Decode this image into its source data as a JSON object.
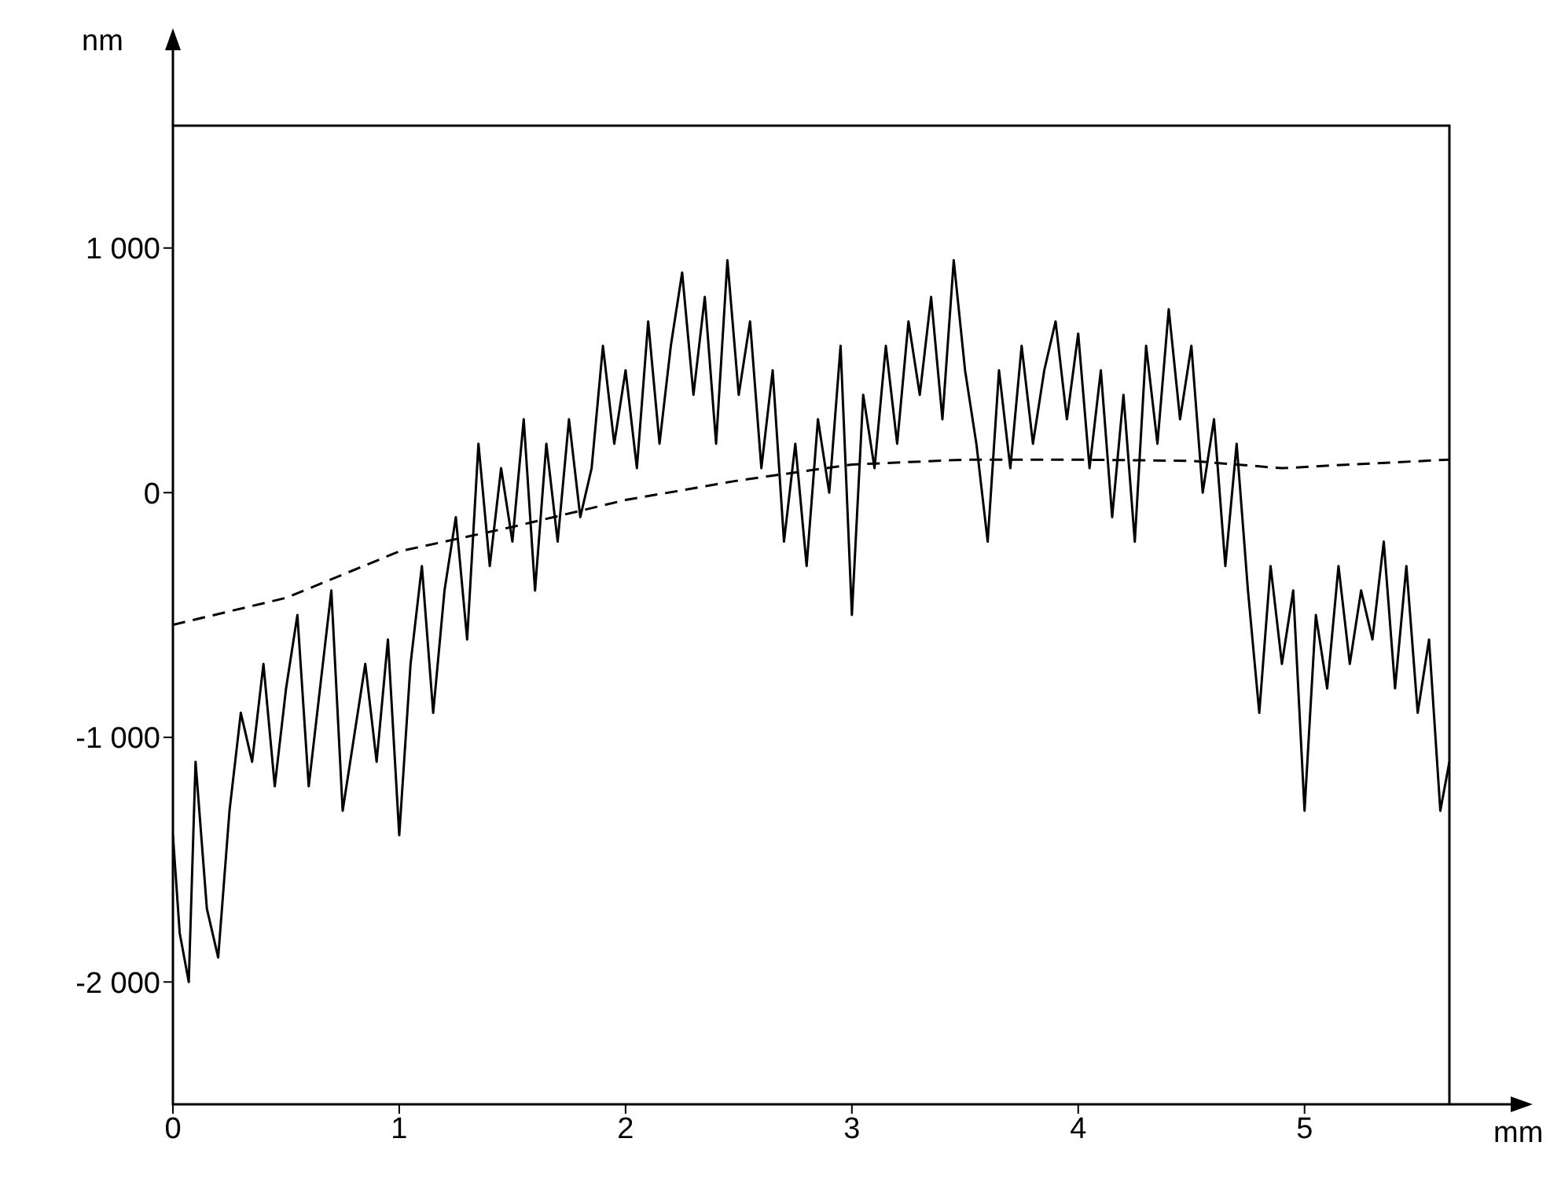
{
  "chart_data": {
    "type": "line",
    "xlabel": "mm",
    "ylabel": "nm",
    "xlim": [
      0,
      5.64
    ],
    "xticks": [
      0,
      1,
      2,
      3,
      4,
      5
    ],
    "ylim": [
      -2500,
      1500
    ],
    "yticks": [
      {
        "value": -2000,
        "label": "-2 000"
      },
      {
        "value": -1000,
        "label": "-1 000"
      },
      0,
      {
        "value": 1000,
        "label": "1 000"
      }
    ],
    "marker": "none",
    "series": [
      {
        "color": "#000000",
        "line_style": "solid",
        "x": [
          0,
          0.03,
          0.07,
          0.1,
          0.15,
          0.2,
          0.25,
          0.3,
          0.35,
          0.4,
          0.45,
          0.5,
          0.55,
          0.6,
          0.65,
          0.7,
          0.75,
          0.8,
          0.85,
          0.9,
          0.95,
          1.0,
          1.05,
          1.1,
          1.15,
          1.2,
          1.25,
          1.3,
          1.35,
          1.4,
          1.45,
          1.5,
          1.55,
          1.6,
          1.65,
          1.7,
          1.75,
          1.8,
          1.85,
          1.9,
          1.95,
          2.0,
          2.05,
          2.1,
          2.15,
          2.2,
          2.25,
          2.3,
          2.35,
          2.4,
          2.45,
          2.5,
          2.55,
          2.6,
          2.65,
          2.7,
          2.75,
          2.8,
          2.85,
          2.9,
          2.95,
          3.0,
          3.05,
          3.1,
          3.15,
          3.2,
          3.25,
          3.3,
          3.35,
          3.4,
          3.45,
          3.5,
          3.55,
          3.6,
          3.65,
          3.7,
          3.75,
          3.8,
          3.85,
          3.9,
          3.95,
          4.0,
          4.05,
          4.1,
          4.15,
          4.2,
          4.25,
          4.3,
          4.35,
          4.4,
          4.45,
          4.5,
          4.55,
          4.6,
          4.65,
          4.7,
          4.75,
          4.8,
          4.85,
          4.9,
          4.95,
          5.0,
          5.05,
          5.1,
          5.15,
          5.2,
          5.25,
          5.3,
          5.35,
          5.4,
          5.45,
          5.5,
          5.55,
          5.6,
          5.64
        ],
        "values": [
          -1400,
          -1800,
          -2000,
          -1100,
          -1700,
          -1900,
          -1300,
          -900,
          -1100,
          -700,
          -1200,
          -800,
          -500,
          -1200,
          -800,
          -400,
          -1300,
          -1000,
          -700,
          -1100,
          -600,
          -1400,
          -700,
          -300,
          -900,
          -400,
          -100,
          -600,
          200,
          -300,
          100,
          -200,
          300,
          -400,
          200,
          -200,
          300,
          -100,
          100,
          600,
          200,
          500,
          100,
          700,
          200,
          600,
          900,
          400,
          800,
          200,
          950,
          400,
          700,
          100,
          500,
          -200,
          200,
          -300,
          300,
          0,
          600,
          -500,
          400,
          100,
          600,
          200,
          700,
          400,
          800,
          300,
          950,
          500,
          200,
          -200,
          500,
          100,
          600,
          200,
          500,
          700,
          300,
          650,
          100,
          500,
          -100,
          400,
          -200,
          600,
          200,
          750,
          300,
          600,
          0,
          300,
          -300,
          200,
          -400,
          -900,
          -300,
          -700,
          -400,
          -1300,
          -500,
          -800,
          -300,
          -700,
          -400,
          -600,
          -200,
          -800,
          -300,
          -900,
          -600,
          -1300,
          -1100
        ]
      },
      {
        "color": "#000000",
        "line_style": "dashed",
        "x": [
          0,
          0.5,
          1,
          1.5,
          2,
          2.5,
          3,
          3.5,
          4,
          4.5,
          4.9,
          5.2,
          5.64
        ],
        "values": [
          -540,
          -430,
          -240,
          -140,
          -30,
          50,
          115,
          135,
          135,
          130,
          100,
          115,
          135
        ]
      }
    ]
  }
}
